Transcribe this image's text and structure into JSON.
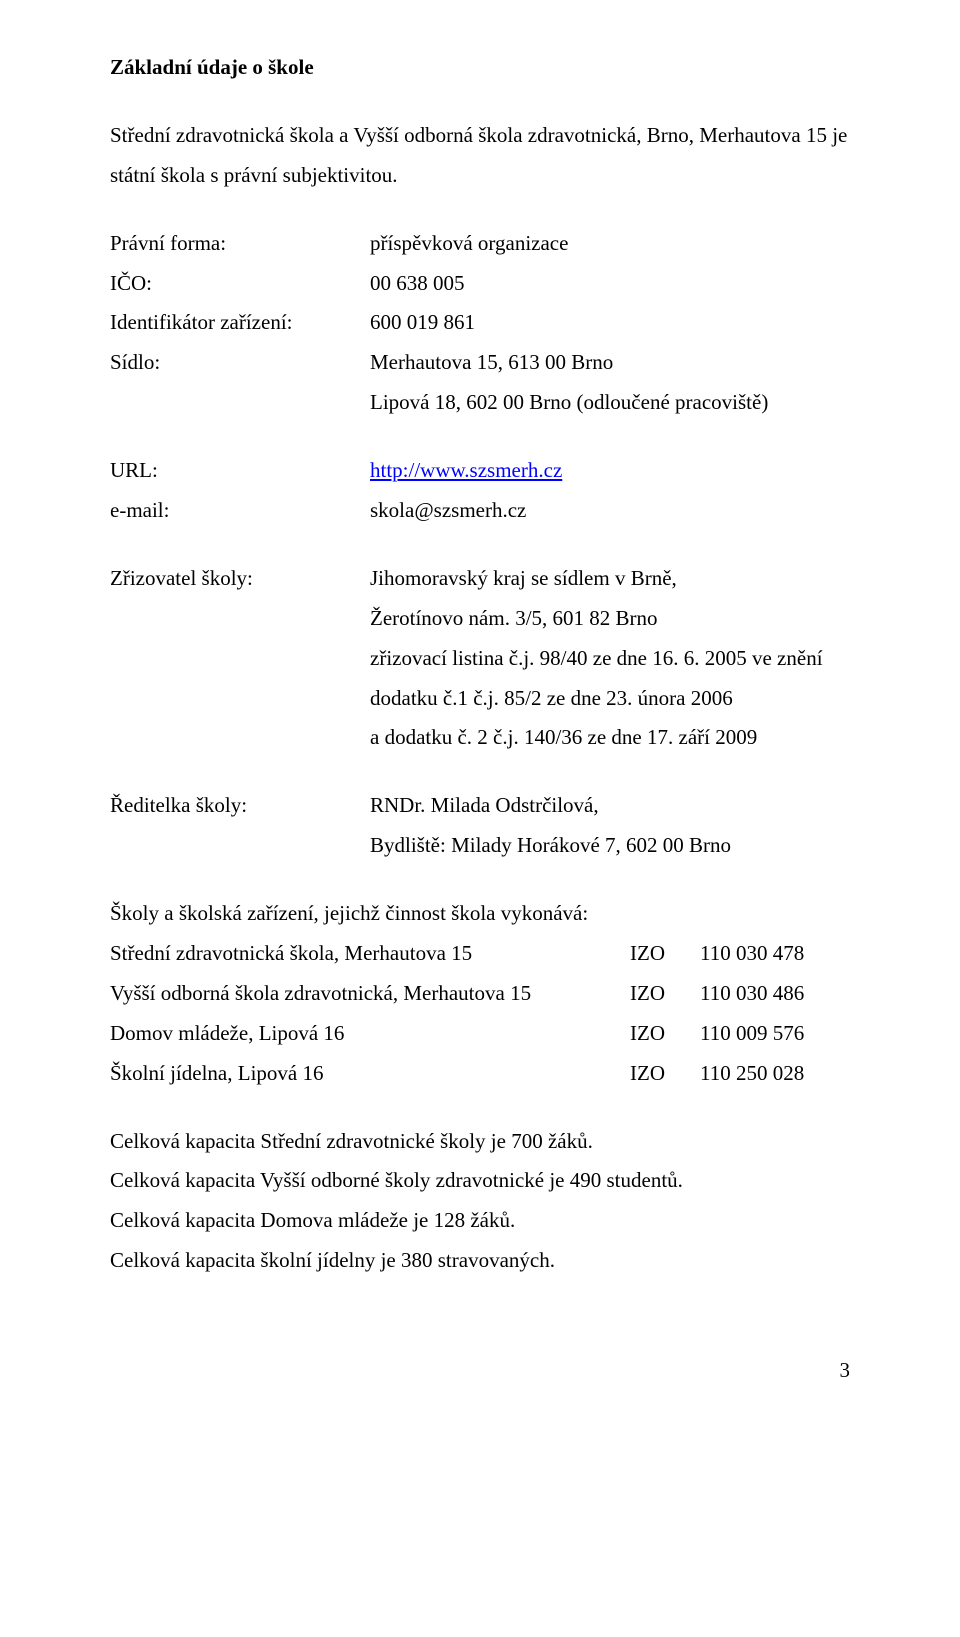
{
  "title": "Základní údaje o škole",
  "intro": "Střední zdravotnická škola a Vyšší odborná škola zdravotnická, Brno, Merhautova 15 je státní škola s právní subjektivitou.",
  "legal": {
    "form_label": "Právní forma:",
    "form_value": "příspěvková organizace",
    "ico_label": "IČO:",
    "ico_value": "00 638 005",
    "ident_label": "Identifikátor zařízení:",
    "ident_value": "600 019 861",
    "sidlo_label": "Sídlo:",
    "sidlo_line1": "Merhautova 15, 613 00 Brno",
    "sidlo_line2": "Lipová 18, 602 00 Brno (odloučené pracoviště)"
  },
  "contact": {
    "url_label": "URL:",
    "url_value": "http://www.szsmerh.cz",
    "email_label": "e-mail:",
    "email_value": "skola@szsmerh.cz"
  },
  "founder": {
    "label": "Zřizovatel školy:",
    "line1": "Jihomoravský kraj se sídlem v Brně,",
    "line2": "Žerotínovo nám. 3/5, 601 82 Brno",
    "line3": "zřizovací listina č.j. 98/40 ze dne 16. 6. 2005 ve znění",
    "line4": "dodatku č.1 č.j. 85/2 ze dne 23. února 2006",
    "line5": "a dodatku č. 2 č.j. 140/36 ze dne 17. září 2009"
  },
  "director": {
    "label": "Ředitelka školy:",
    "line1": "RNDr. Milada Odstrčilová,",
    "line2": "Bydliště: Milady Horákové 7,  602 00 Brno"
  },
  "schools": {
    "heading": "Školy a školská zařízení, jejichž činnost škola vykonává:",
    "rows": [
      {
        "name": "Střední zdravotnická škola, Merhautova 15",
        "code": "IZO",
        "num": "110 030 478"
      },
      {
        "name": "Vyšší odborná škola zdravotnická, Merhautova 15",
        "code": "IZO",
        "num": "110 030 486"
      },
      {
        "name": "Domov mládeže, Lipová 16",
        "code": "IZO",
        "num": "110 009 576"
      },
      {
        "name": "Školní jídelna, Lipová 16",
        "code": "IZO",
        "num": "110 250 028"
      }
    ]
  },
  "capacity": {
    "l1": "Celková kapacita Střední zdravotnické školy je 700 žáků.",
    "l2": "Celková kapacita Vyšší odborné školy zdravotnické je 490 studentů.",
    "l3": "Celková kapacita Domova mládeže je 128 žáků.",
    "l4": "Celková kapacita školní jídelny je 380 stravovaných."
  },
  "page_number": "3"
}
